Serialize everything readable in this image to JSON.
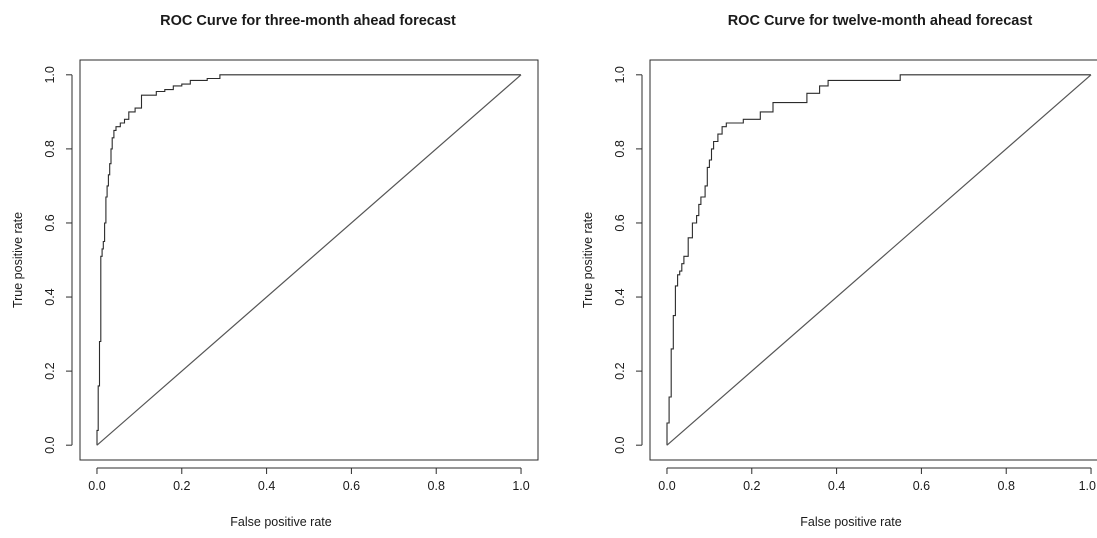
{
  "chart_data": [
    {
      "type": "line",
      "title": "ROC Curve for three-month ahead forecast",
      "xlabel": "False positive rate",
      "ylabel": "True positive rate",
      "xlim": [
        0,
        1
      ],
      "ylim": [
        0,
        1
      ],
      "x_ticks": [
        "0.0",
        "0.2",
        "0.4",
        "0.6",
        "0.8",
        "1.0"
      ],
      "y_ticks": [
        "0.0",
        "0.2",
        "0.4",
        "0.6",
        "0.8",
        "1.0"
      ],
      "grid": false,
      "series": [
        {
          "role": "roc",
          "step": true,
          "x": [
            0.0,
            0.0,
            0.003,
            0.003,
            0.006,
            0.006,
            0.009,
            0.009,
            0.012,
            0.012,
            0.015,
            0.015,
            0.018,
            0.018,
            0.021,
            0.021,
            0.024,
            0.024,
            0.027,
            0.027,
            0.03,
            0.03,
            0.033,
            0.033,
            0.036,
            0.036,
            0.04,
            0.04,
            0.045,
            0.045,
            0.055,
            0.055,
            0.065,
            0.065,
            0.075,
            0.075,
            0.09,
            0.09,
            0.105,
            0.105,
            0.14,
            0.14,
            0.16,
            0.16,
            0.18,
            0.18,
            0.2,
            0.2,
            0.22,
            0.22,
            0.26,
            0.26,
            0.29,
            0.29,
            1.0
          ],
          "y": [
            0.0,
            0.04,
            0.04,
            0.16,
            0.16,
            0.28,
            0.28,
            0.51,
            0.51,
            0.53,
            0.53,
            0.55,
            0.55,
            0.6,
            0.6,
            0.67,
            0.67,
            0.7,
            0.7,
            0.73,
            0.73,
            0.76,
            0.76,
            0.8,
            0.8,
            0.83,
            0.83,
            0.85,
            0.85,
            0.86,
            0.86,
            0.87,
            0.87,
            0.88,
            0.88,
            0.9,
            0.9,
            0.91,
            0.91,
            0.945,
            0.945,
            0.955,
            0.955,
            0.96,
            0.96,
            0.97,
            0.97,
            0.975,
            0.975,
            0.985,
            0.985,
            0.99,
            0.99,
            1.0,
            1.0
          ]
        },
        {
          "role": "diagonal",
          "x": [
            0,
            1
          ],
          "y": [
            0,
            1
          ]
        }
      ]
    },
    {
      "type": "line",
      "title": "ROC Curve for twelve-month ahead forecast",
      "xlabel": "False positive rate",
      "ylabel": "True positive rate",
      "xlim": [
        0,
        1
      ],
      "ylim": [
        0,
        1
      ],
      "x_ticks": [
        "0.0",
        "0.2",
        "0.4",
        "0.6",
        "0.8",
        "1.0"
      ],
      "y_ticks": [
        "0.0",
        "0.2",
        "0.4",
        "0.6",
        "0.8",
        "1.0"
      ],
      "grid": false,
      "series": [
        {
          "role": "roc",
          "step": true,
          "x": [
            0.0,
            0.0,
            0.005,
            0.005,
            0.01,
            0.01,
            0.015,
            0.015,
            0.02,
            0.02,
            0.025,
            0.025,
            0.03,
            0.03,
            0.035,
            0.035,
            0.04,
            0.04,
            0.05,
            0.05,
            0.06,
            0.06,
            0.07,
            0.07,
            0.075,
            0.075,
            0.08,
            0.08,
            0.09,
            0.09,
            0.095,
            0.095,
            0.1,
            0.1,
            0.105,
            0.105,
            0.11,
            0.11,
            0.12,
            0.12,
            0.13,
            0.13,
            0.14,
            0.14,
            0.18,
            0.18,
            0.22,
            0.22,
            0.25,
            0.25,
            0.33,
            0.33,
            0.36,
            0.36,
            0.38,
            0.38,
            0.55,
            0.55,
            1.0
          ],
          "y": [
            0.0,
            0.06,
            0.06,
            0.13,
            0.13,
            0.26,
            0.26,
            0.35,
            0.35,
            0.43,
            0.43,
            0.46,
            0.46,
            0.47,
            0.47,
            0.49,
            0.49,
            0.51,
            0.51,
            0.56,
            0.56,
            0.6,
            0.6,
            0.62,
            0.62,
            0.65,
            0.65,
            0.67,
            0.67,
            0.7,
            0.7,
            0.75,
            0.75,
            0.77,
            0.77,
            0.8,
            0.8,
            0.82,
            0.82,
            0.84,
            0.84,
            0.86,
            0.86,
            0.87,
            0.87,
            0.88,
            0.88,
            0.9,
            0.9,
            0.925,
            0.925,
            0.95,
            0.95,
            0.97,
            0.97,
            0.985,
            0.985,
            1.0,
            1.0
          ]
        },
        {
          "role": "diagonal",
          "x": [
            0,
            1
          ],
          "y": [
            0,
            1
          ]
        }
      ]
    }
  ]
}
